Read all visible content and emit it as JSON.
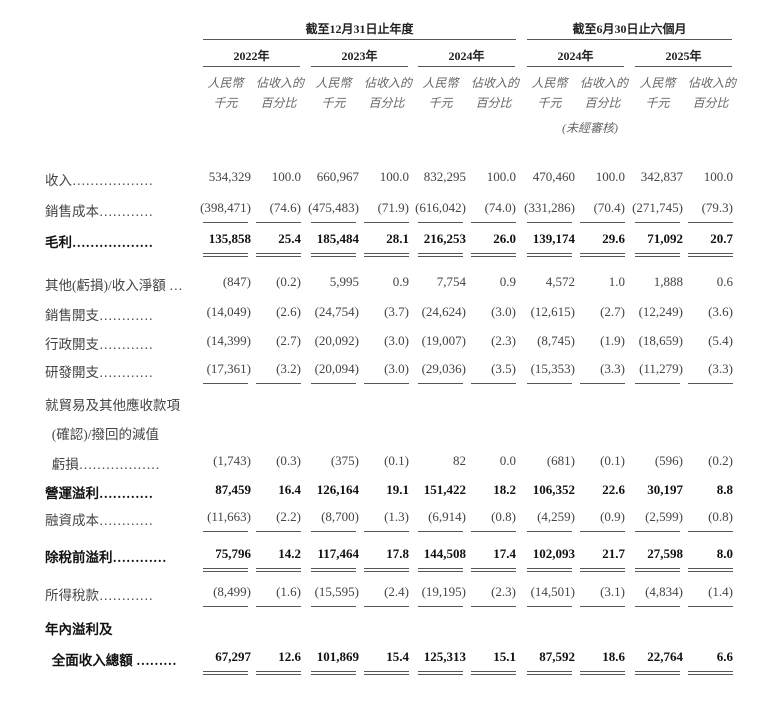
{
  "header": {
    "period_annual": "截至12月31日止年度",
    "period_half": "截至6月30日止六個月",
    "years": [
      "2022年",
      "2023年",
      "2024年",
      "2024年",
      "2025年"
    ],
    "sub_amount_1": "人民幣",
    "sub_amount_2": "千元",
    "sub_pct_1": "佔收入的",
    "sub_pct_2": "百分比",
    "unaudited": "(未經審核)"
  },
  "rows": [
    {
      "label": "收入………………",
      "bold": false,
      "line": "",
      "values": [
        "534,329",
        "100.0",
        "660,967",
        "100.0",
        "832,295",
        "100.0",
        "470,460",
        "100.0",
        "342,837",
        "100.0"
      ]
    },
    {
      "label": "銷售成本…………",
      "bold": false,
      "line": "single",
      "values": [
        "(398,471)",
        "(74.6)",
        "(475,483)",
        "(71.9)",
        "(616,042)",
        "(74.0)",
        "(331,286)",
        "(70.4)",
        "(271,745)",
        "(79.3)"
      ]
    },
    {
      "label": "毛利………………",
      "bold": true,
      "line": "double",
      "values": [
        "135,858",
        "25.4",
        "185,484",
        "28.1",
        "216,253",
        "26.0",
        "139,174",
        "29.6",
        "71,092",
        "20.7"
      ]
    },
    {
      "label": "其他(虧損)/收入淨額 …",
      "bold": false,
      "line": "",
      "values": [
        "(847)",
        "(0.2)",
        "5,995",
        "0.9",
        "7,754",
        "0.9",
        "4,572",
        "1.0",
        "1,888",
        "0.6"
      ]
    },
    {
      "label": "銷售開支…………",
      "bold": false,
      "line": "",
      "values": [
        "(14,049)",
        "(2.6)",
        "(24,754)",
        "(3.7)",
        "(24,624)",
        "(3.0)",
        "(12,615)",
        "(2.7)",
        "(12,249)",
        "(3.6)"
      ]
    },
    {
      "label": "行政開支…………",
      "bold": false,
      "line": "",
      "values": [
        "(14,399)",
        "(2.7)",
        "(20,092)",
        "(3.0)",
        "(19,007)",
        "(2.3)",
        "(8,745)",
        "(1.9)",
        "(18,659)",
        "(5.4)"
      ]
    },
    {
      "label": "研發開支…………",
      "bold": false,
      "line": "single",
      "values": [
        "(17,361)",
        "(3.2)",
        "(20,094)",
        "(3.0)",
        "(29,036)",
        "(3.5)",
        "(15,353)",
        "(3.3)",
        "(11,279)",
        "(3.3)"
      ]
    },
    {
      "label": "就貿易及其他應收款項",
      "bold": false,
      "line": "",
      "values": []
    },
    {
      "label": "  (確認)/撥回的減值",
      "bold": false,
      "line": "",
      "values": []
    },
    {
      "label": "  虧損………………",
      "bold": false,
      "line": "",
      "values": [
        "(1,743)",
        "(0.3)",
        "(375)",
        "(0.1)",
        "82",
        "0.0",
        "(681)",
        "(0.1)",
        "(596)",
        "(0.2)"
      ]
    },
    {
      "label": "營運溢利…………",
      "bold": true,
      "line": "",
      "values": [
        "87,459",
        "16.4",
        "126,164",
        "19.1",
        "151,422",
        "18.2",
        "106,352",
        "22.6",
        "30,197",
        "8.8"
      ]
    },
    {
      "label": "融資成本…………",
      "bold": false,
      "line": "single",
      "values": [
        "(11,663)",
        "(2.2)",
        "(8,700)",
        "(1.3)",
        "(6,914)",
        "(0.8)",
        "(4,259)",
        "(0.9)",
        "(2,599)",
        "(0.8)"
      ]
    },
    {
      "label": "除稅前溢利…………",
      "bold": true,
      "line": "double",
      "values": [
        "75,796",
        "14.2",
        "117,464",
        "17.8",
        "144,508",
        "17.4",
        "102,093",
        "21.7",
        "27,598",
        "8.0"
      ]
    },
    {
      "label": "所得稅款…………",
      "bold": false,
      "line": "single",
      "values": [
        "(8,499)",
        "(1.6)",
        "(15,595)",
        "(2.4)",
        "(19,195)",
        "(2.3)",
        "(14,501)",
        "(3.1)",
        "(4,834)",
        "(1.4)"
      ]
    },
    {
      "label": "年內溢利及",
      "bold": true,
      "line": "",
      "values": []
    },
    {
      "label": "  全面收入總額 ………",
      "bold": true,
      "line": "double",
      "values": [
        "67,297",
        "12.6",
        "101,869",
        "15.4",
        "125,313",
        "15.1",
        "87,592",
        "18.6",
        "22,764",
        "6.6"
      ]
    }
  ]
}
